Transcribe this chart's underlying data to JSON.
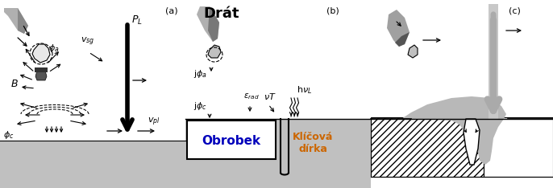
{
  "fig_width": 6.86,
  "fig_height": 2.34,
  "dpi": 100,
  "bg_color": "#ffffff",
  "gray_surface": "#c0c0c0",
  "light_gray": "#b8b8b8",
  "panel_a_label": "(a)",
  "panel_b_label": "(b)",
  "panel_c_label": "(c)",
  "label_drat": "Drát",
  "label_obrobek": "Obrobek",
  "label_klicova": "Klíčová\ndírka",
  "text_color_orange": "#cc6600",
  "text_color_blue": "#0000bb"
}
